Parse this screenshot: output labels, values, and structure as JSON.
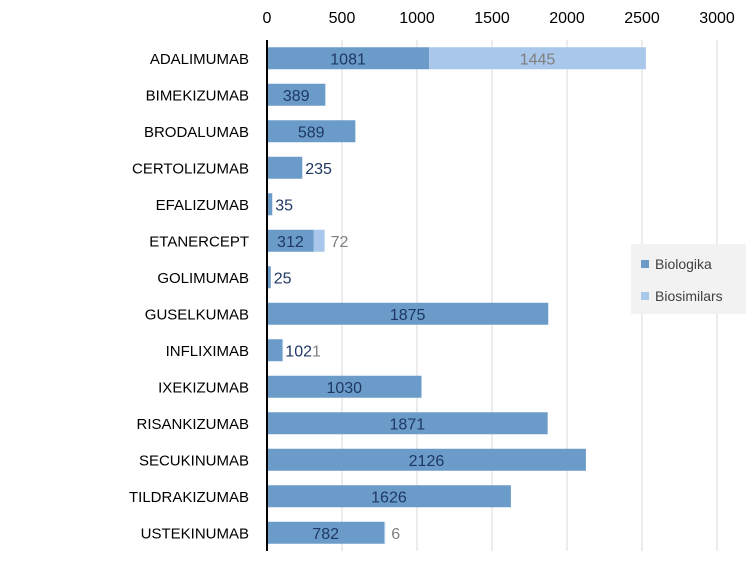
{
  "chart_data": {
    "type": "bar",
    "orientation": "horizontal",
    "stacked": true,
    "categories": [
      "ADALIMUMAB",
      "BIMEKIZUMAB",
      "BRODALUMAB",
      "CERTOLIZUMAB",
      "EFALIZUMAB",
      "ETANERCEPT",
      "GOLIMUMAB",
      "GUSELKUMAB",
      "INFLIXIMAB",
      "IXEKIZUMAB",
      "RISANKIZUMAB",
      "SECUKINUMAB",
      "TILDRAKIZUMAB",
      "USTEKINUMAB"
    ],
    "series": [
      {
        "name": "Biologika",
        "color": "#6a9bc9",
        "label_color": "#1f3864",
        "values": [
          1081,
          389,
          589,
          235,
          35,
          312,
          25,
          1875,
          102,
          1030,
          1871,
          2126,
          1626,
          782
        ]
      },
      {
        "name": "Biosimilars",
        "color": "#a9c7ea",
        "label_color": "#7f7f7f",
        "values": [
          1445,
          null,
          null,
          null,
          null,
          72,
          null,
          null,
          1,
          null,
          null,
          null,
          null,
          6
        ]
      }
    ],
    "xlim": [
      0,
      3000
    ],
    "xticks": [
      "0",
      "500",
      "1000",
      "1500",
      "2000",
      "2500",
      "3000"
    ],
    "x_axis_position": "top",
    "grid": true,
    "legend_position": "right",
    "title": "",
    "xlabel": "",
    "ylabel": ""
  }
}
